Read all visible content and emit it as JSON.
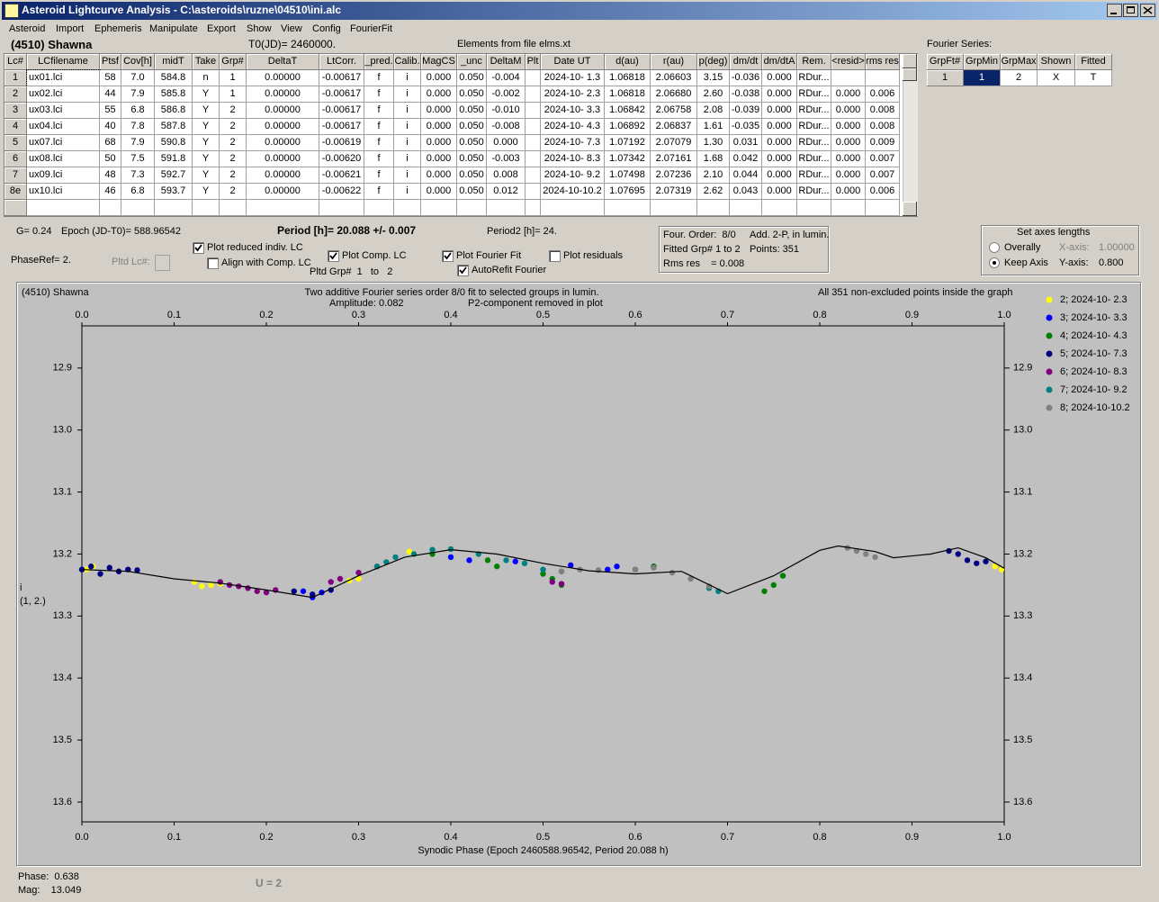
{
  "window": {
    "title": "Asteroid Lightcurve Analysis - C:\\asteroids\\ruzne\\04510\\ini.alc",
    "menu": [
      "Asteroid",
      "Import",
      "Ephemeris",
      "Manipulate",
      "Export",
      "Show",
      "View",
      "Config",
      "FourierFit"
    ]
  },
  "header": {
    "object": "(4510) Shawna",
    "t0": "T0(JD)= 2460000.",
    "elements": "Elements from file elms.xt",
    "fourier_label": "Fourier Series:"
  },
  "lc_table": {
    "columns": [
      "Lc#",
      "LCfilename",
      "Ptsf",
      "Cov[h]",
      "midT",
      "Take",
      "Grp#",
      "DeltaT",
      "LtCorr.",
      "_pred.",
      "Calib.",
      "MagCS",
      "_unc",
      "DeltaM",
      "Plt",
      "Date UT",
      "d(au)",
      "r(au)",
      "p(deg)",
      "dm/dt",
      "dm/dtA",
      "Rem.",
      "<resid>",
      "rms res"
    ],
    "rows": [
      [
        "1",
        "ux01.lci",
        "58",
        "7.0",
        "584.8",
        "n",
        "1",
        "0.00000",
        "-0.00617",
        "f",
        "i",
        "0.000",
        "0.050",
        "-0.004",
        null,
        "2024-10- 1.3",
        "1.06818",
        "2.06603",
        "3.15",
        "-0.036",
        "0.000",
        "RDur...",
        null,
        null
      ],
      [
        "2",
        "ux02.lci",
        "44",
        "7.9",
        "585.8",
        "Y",
        "1",
        "0.00000",
        "-0.00617",
        "f",
        "i",
        "0.000",
        "0.050",
        "-0.002",
        null,
        "2024-10- 2.3",
        "1.06818",
        "2.06680",
        "2.60",
        "-0.038",
        "0.000",
        "RDur...",
        "0.000",
        "0.006"
      ],
      [
        "3",
        "ux03.lci",
        "55",
        "6.8",
        "586.8",
        "Y",
        "2",
        "0.00000",
        "-0.00617",
        "f",
        "i",
        "0.000",
        "0.050",
        "-0.010",
        null,
        "2024-10- 3.3",
        "1.06842",
        "2.06758",
        "2.08",
        "-0.039",
        "0.000",
        "RDur...",
        "0.000",
        "0.008"
      ],
      [
        "4",
        "ux04.lci",
        "40",
        "7.8",
        "587.8",
        "Y",
        "2",
        "0.00000",
        "-0.00617",
        "f",
        "i",
        "0.000",
        "0.050",
        "-0.008",
        null,
        "2024-10- 4.3",
        "1.06892",
        "2.06837",
        "1.61",
        "-0.035",
        "0.000",
        "RDur...",
        "0.000",
        "0.008"
      ],
      [
        "5",
        "ux07.lci",
        "68",
        "7.9",
        "590.8",
        "Y",
        "2",
        "0.00000",
        "-0.00619",
        "f",
        "i",
        "0.000",
        "0.050",
        "0.000",
        null,
        "2024-10- 7.3",
        "1.07192",
        "2.07079",
        "1.30",
        "0.031",
        "0.000",
        "RDur...",
        "0.000",
        "0.009"
      ],
      [
        "6",
        "ux08.lci",
        "50",
        "7.5",
        "591.8",
        "Y",
        "2",
        "0.00000",
        "-0.00620",
        "f",
        "i",
        "0.000",
        "0.050",
        "-0.003",
        null,
        "2024-10- 8.3",
        "1.07342",
        "2.07161",
        "1.68",
        "0.042",
        "0.000",
        "RDur...",
        "0.000",
        "0.007"
      ],
      [
        "7",
        "ux09.lci",
        "48",
        "7.3",
        "592.7",
        "Y",
        "2",
        "0.00000",
        "-0.00621",
        "f",
        "i",
        "0.000",
        "0.050",
        "0.008",
        null,
        "2024-10- 9.2",
        "1.07498",
        "2.07236",
        "2.10",
        "0.044",
        "0.000",
        "RDur...",
        "0.000",
        "0.007"
      ],
      [
        "8e",
        "ux10.lci",
        "46",
        "6.8",
        "593.7",
        "Y",
        "2",
        "0.00000",
        "-0.00622",
        "f",
        "i",
        "0.000",
        "0.050",
        "0.012",
        null,
        "2024-10-10.2",
        "1.07695",
        "2.07319",
        "2.62",
        "0.043",
        "0.000",
        "RDur...",
        "0.000",
        "0.006"
      ]
    ]
  },
  "fourier_table": {
    "columns": [
      "GrpFt#",
      "GrpMin",
      "GrpMax",
      "Shown",
      "Fitted"
    ],
    "rows": [
      [
        "1",
        "1",
        "2",
        "X",
        "T"
      ]
    ]
  },
  "controls": {
    "g": "G= 0.24",
    "epoch": "Epoch (JD-T0)= 588.96542",
    "period": "Period [h]= 20.088 +/- 0.007",
    "period2": "Period2 [h]= 24.",
    "phase_ref": "PhaseRef= 2.",
    "pltd_lc": "Pltd Lc#:",
    "pltd_grp": "Pltd Grp#  1   to   2",
    "checkboxes": [
      {
        "label": "Plot reduced indiv. LC",
        "checked": true
      },
      {
        "label": "Align with Comp. LC",
        "checked": false
      },
      {
        "label": "Plot Comp. LC",
        "checked": true
      },
      {
        "label": "Plot Fourier Fit",
        "checked": true
      },
      {
        "label": "AutoRefit Fourier",
        "checked": true
      },
      {
        "label": "Plot residuals",
        "checked": false
      }
    ]
  },
  "info_box": {
    "order": "Four. Order:  8/0",
    "add": "Add. 2-P, in lumin.",
    "fitted": "Fitted Grp# 1 to 2",
    "points": "Points: 351",
    "rms": "Rms res    = 0.008"
  },
  "axes_box": {
    "title": "Set axes lengths",
    "options": [
      {
        "label": "Overally",
        "selected": false,
        "axis": "X-axis:",
        "value": "1.00000",
        "enabled": false
      },
      {
        "label": "Keep Axis",
        "selected": true,
        "axis": "Y-axis:",
        "value": "0.800",
        "enabled": true
      }
    ]
  },
  "chart_data": {
    "type": "scatter",
    "object": "(4510) Shawna",
    "title": "Two additive Fourier series order 8/0 fit to selected groups in lumin.",
    "annotations": [
      "Amplitude: 0.082",
      "P2-component removed in plot",
      "All 351 non-excluded points inside the graph"
    ],
    "y_label": [
      "i",
      "(1, 2.)"
    ],
    "x_label": "Synodic Phase (Epoch 2460588.96542, Period 20.088 h)",
    "xlim": [
      0,
      1
    ],
    "xticks": [
      {
        "value": 0,
        "label": "0.0"
      },
      0.1,
      0.2,
      0.3,
      0.4,
      0.5,
      0.6,
      0.7,
      0.8,
      0.9,
      {
        "value": 1,
        "label": "1.0"
      }
    ],
    "ylim": [
      13.632,
      12.832
    ],
    "yticks": [
      12.9,
      {
        "value": 13,
        "label": "13.0"
      },
      13.1,
      13.2,
      13.3,
      13.4,
      13.5,
      13.6
    ],
    "series": [
      {
        "name": "2; 2024-10- 2.3",
        "color": "#ffff00",
        "x": [
          0.005,
          0.012,
          0.122,
          0.13,
          0.14,
          0.15,
          0.29,
          0.3,
          0.355,
          0.36,
          0.99,
          0.997
        ],
        "values": [
          13.225,
          13.22,
          13.245,
          13.252,
          13.25,
          13.248,
          13.243,
          13.24,
          13.196,
          13.2,
          13.22,
          13.225
        ]
      },
      {
        "name": "3; 2024-10- 3.3",
        "color": "#0000ff",
        "x": [
          0.24,
          0.25,
          0.26,
          0.4,
          0.42,
          0.47,
          0.53,
          0.57,
          0.58,
          0.62
        ],
        "values": [
          13.26,
          13.27,
          13.262,
          13.205,
          13.21,
          13.212,
          13.218,
          13.225,
          13.22,
          13.22
        ]
      },
      {
        "name": "4; 2024-10- 4.3",
        "color": "#008000",
        "x": [
          0.38,
          0.44,
          0.45,
          0.5,
          0.51,
          0.52,
          0.6,
          0.62,
          0.74,
          0.75,
          0.76
        ],
        "values": [
          13.2,
          13.21,
          13.22,
          13.232,
          13.24,
          13.25,
          13.225,
          13.22,
          13.26,
          13.25,
          13.235
        ]
      },
      {
        "name": "5; 2024-10- 7.3",
        "color": "#000080",
        "x": [
          0,
          0.01,
          0.02,
          0.03,
          0.04,
          0.05,
          0.06,
          0.23,
          0.25,
          0.27,
          0.94,
          0.95,
          0.96,
          0.97,
          0.98
        ],
        "values": [
          13.225,
          13.22,
          13.232,
          13.222,
          13.228,
          13.225,
          13.226,
          13.26,
          13.265,
          13.258,
          13.195,
          13.2,
          13.21,
          13.215,
          13.212
        ]
      },
      {
        "name": "6; 2024-10- 8.3",
        "color": "#800080",
        "x": [
          0.15,
          0.16,
          0.17,
          0.18,
          0.19,
          0.2,
          0.21,
          0.27,
          0.28,
          0.3,
          0.32,
          0.51,
          0.52
        ],
        "values": [
          13.245,
          13.25,
          13.252,
          13.255,
          13.26,
          13.262,
          13.258,
          13.245,
          13.24,
          13.23,
          13.22,
          13.245,
          13.248
        ]
      },
      {
        "name": "7; 2024-10- 9.2",
        "color": "#008080",
        "x": [
          0.32,
          0.33,
          0.34,
          0.36,
          0.38,
          0.4,
          0.43,
          0.46,
          0.48,
          0.5,
          0.52,
          0.68,
          0.69
        ],
        "values": [
          13.22,
          13.213,
          13.205,
          13.2,
          13.193,
          13.192,
          13.2,
          13.21,
          13.215,
          13.225,
          13.228,
          13.255,
          13.26
        ]
      },
      {
        "name": "8; 2024-10-10.2",
        "color": "#808080",
        "x": [
          0.52,
          0.54,
          0.56,
          0.6,
          0.62,
          0.64,
          0.66,
          0.68,
          0.83,
          0.84,
          0.85,
          0.86
        ],
        "values": [
          13.228,
          13.225,
          13.226,
          13.225,
          13.222,
          13.23,
          13.24,
          13.252,
          13.19,
          13.195,
          13.2,
          13.205
        ]
      }
    ],
    "fit": {
      "color": "#000000",
      "x": [
        0,
        0.05,
        0.1,
        0.15,
        0.2,
        0.25,
        0.3,
        0.35,
        0.4,
        0.45,
        0.5,
        0.55,
        0.6,
        0.65,
        0.7,
        0.75,
        0.8,
        0.82,
        0.86,
        0.88,
        0.92,
        0.95,
        0.98,
        1
      ],
      "y": [
        13.225,
        13.228,
        13.24,
        13.247,
        13.258,
        13.27,
        13.235,
        13.205,
        13.193,
        13.2,
        13.215,
        13.227,
        13.232,
        13.228,
        13.264,
        13.235,
        13.194,
        13.187,
        13.196,
        13.206,
        13.2,
        13.19,
        13.206,
        13.223
      ]
    }
  },
  "status": {
    "phase": "Phase:  0.638",
    "mag": "Mag:    13.049",
    "u": "U = 2"
  }
}
